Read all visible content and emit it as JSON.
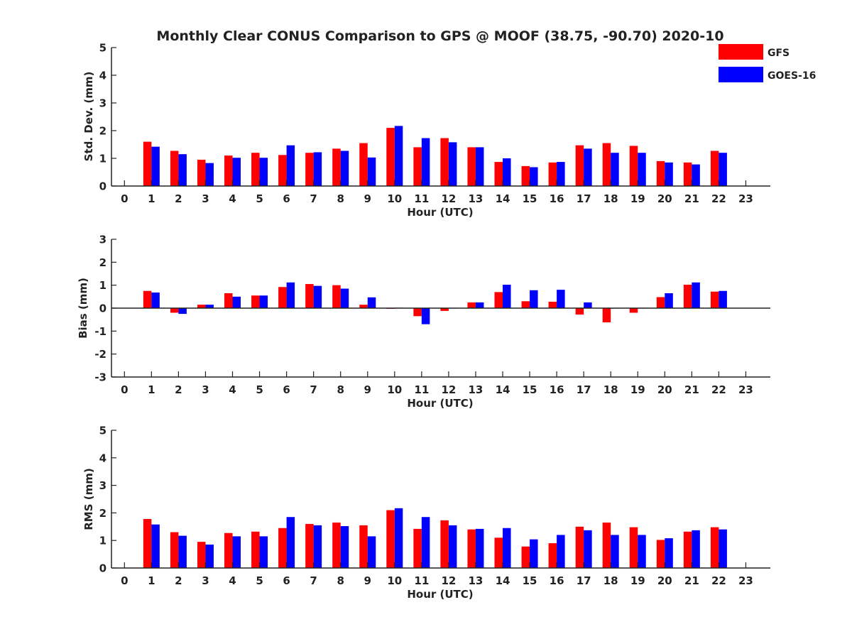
{
  "title": "Monthly Clear CONUS Comparison to GPS @ MOOF (38.75, -90.70) 2020-10",
  "legend": {
    "placement": "top-right",
    "entries": [
      {
        "name": "GFS",
        "color": "#ff0000"
      },
      {
        "name": "GOES-16",
        "color": "#0000ff"
      }
    ]
  },
  "chart_data": [
    {
      "type": "bar",
      "xlabel": "Hour (UTC)",
      "ylabel": "Std. Dev. (mm)",
      "ylim": [
        0,
        5
      ],
      "yticks": [
        "0",
        "1",
        "2",
        "3",
        "4",
        "5"
      ],
      "xlim": [
        0,
        23
      ],
      "categories": [
        "0",
        "1",
        "2",
        "3",
        "4",
        "5",
        "6",
        "7",
        "8",
        "9",
        "10",
        "11",
        "12",
        "13",
        "14",
        "15",
        "16",
        "17",
        "18",
        "19",
        "20",
        "21",
        "22",
        "23"
      ],
      "series": [
        {
          "name": "GFS",
          "color": "#ff0000",
          "values": [
            null,
            1.6,
            1.27,
            0.95,
            1.1,
            1.2,
            1.12,
            1.2,
            1.35,
            1.55,
            2.1,
            1.4,
            1.73,
            1.4,
            0.87,
            0.72,
            0.85,
            1.47,
            1.55,
            1.45,
            0.9,
            0.85,
            1.27,
            null
          ]
        },
        {
          "name": "GOES-16",
          "color": "#0000ff",
          "values": [
            null,
            1.42,
            1.15,
            0.83,
            1.02,
            1.02,
            1.47,
            1.22,
            1.27,
            1.03,
            2.17,
            1.73,
            1.58,
            1.4,
            1.0,
            0.68,
            0.87,
            1.35,
            1.2,
            1.2,
            0.85,
            0.78,
            1.2,
            null
          ]
        }
      ]
    },
    {
      "type": "bar",
      "xlabel": "Hour (UTC)",
      "ylabel": "Bias (mm)",
      "ylim": [
        -3,
        3
      ],
      "yticks": [
        "-3",
        "-2",
        "-1",
        "0",
        "1",
        "2",
        "3"
      ],
      "xlim": [
        0,
        23
      ],
      "categories": [
        "0",
        "1",
        "2",
        "3",
        "4",
        "5",
        "6",
        "7",
        "8",
        "9",
        "10",
        "11",
        "12",
        "13",
        "14",
        "15",
        "16",
        "17",
        "18",
        "19",
        "20",
        "21",
        "22",
        "23"
      ],
      "series": [
        {
          "name": "GFS",
          "color": "#ff0000",
          "values": [
            null,
            0.75,
            -0.2,
            0.15,
            0.65,
            0.55,
            0.92,
            1.05,
            1.0,
            0.15,
            -0.03,
            -0.35,
            -0.12,
            0.25,
            0.7,
            0.3,
            0.28,
            -0.28,
            -0.62,
            -0.2,
            0.48,
            1.02,
            0.72,
            null
          ]
        },
        {
          "name": "GOES-16",
          "color": "#0000ff",
          "values": [
            null,
            0.68,
            -0.25,
            0.15,
            0.5,
            0.55,
            1.12,
            0.97,
            0.85,
            0.47,
            0.02,
            -0.7,
            0.0,
            0.25,
            1.02,
            0.78,
            0.8,
            0.25,
            0.0,
            0.0,
            0.65,
            1.12,
            0.75,
            null
          ]
        }
      ]
    },
    {
      "type": "bar",
      "xlabel": "Hour (UTC)",
      "ylabel": "RMS (mm)",
      "ylim": [
        0,
        5
      ],
      "yticks": [
        "0",
        "1",
        "2",
        "3",
        "4",
        "5"
      ],
      "xlim": [
        0,
        23
      ],
      "categories": [
        "0",
        "1",
        "2",
        "3",
        "4",
        "5",
        "6",
        "7",
        "8",
        "9",
        "10",
        "11",
        "12",
        "13",
        "14",
        "15",
        "16",
        "17",
        "18",
        "19",
        "20",
        "21",
        "22",
        "23"
      ],
      "series": [
        {
          "name": "GFS",
          "color": "#ff0000",
          "values": [
            null,
            1.78,
            1.3,
            0.95,
            1.27,
            1.32,
            1.45,
            1.6,
            1.65,
            1.55,
            2.1,
            1.42,
            1.73,
            1.4,
            1.1,
            0.78,
            0.9,
            1.5,
            1.65,
            1.48,
            1.02,
            1.32,
            1.48,
            null
          ]
        },
        {
          "name": "GOES-16",
          "color": "#0000ff",
          "values": [
            null,
            1.58,
            1.17,
            0.85,
            1.15,
            1.15,
            1.85,
            1.55,
            1.52,
            1.15,
            2.17,
            1.85,
            1.55,
            1.42,
            1.45,
            1.04,
            1.2,
            1.37,
            1.2,
            1.2,
            1.08,
            1.37,
            1.4,
            null
          ]
        }
      ]
    }
  ]
}
